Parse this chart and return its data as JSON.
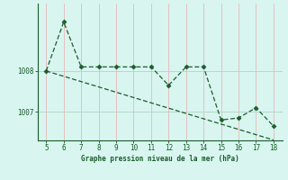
{
  "x": [
    5,
    6,
    7,
    8,
    9,
    10,
    11,
    12,
    13,
    14,
    15,
    16,
    17,
    18
  ],
  "y_line": [
    1008.0,
    1009.2,
    1008.1,
    1008.1,
    1008.1,
    1008.1,
    1008.1,
    1007.65,
    1008.1,
    1008.1,
    1006.8,
    1006.85,
    1007.1,
    1006.65
  ],
  "y_trend": [
    1008.0,
    1007.87,
    1007.74,
    1007.61,
    1007.48,
    1007.35,
    1007.22,
    1007.09,
    1006.96,
    1006.83,
    1006.7,
    1006.57,
    1006.44,
    1006.31
  ],
  "xlim": [
    4.5,
    18.5
  ],
  "ylim": [
    1006.3,
    1009.65
  ],
  "yticks": [
    1007.0,
    1008.0
  ],
  "xticks": [
    5,
    6,
    7,
    8,
    9,
    10,
    11,
    12,
    13,
    14,
    15,
    16,
    17,
    18
  ],
  "xlabel": "Graphe pression niveau de la mer (hPa)",
  "line_color": "#1a5c2a",
  "bg_color": "#d8f5f0",
  "vgrid_color": "#e8b8b8",
  "hgrid_color": "#b0d4c0",
  "markersize": 2.5,
  "linewidth": 0.9
}
